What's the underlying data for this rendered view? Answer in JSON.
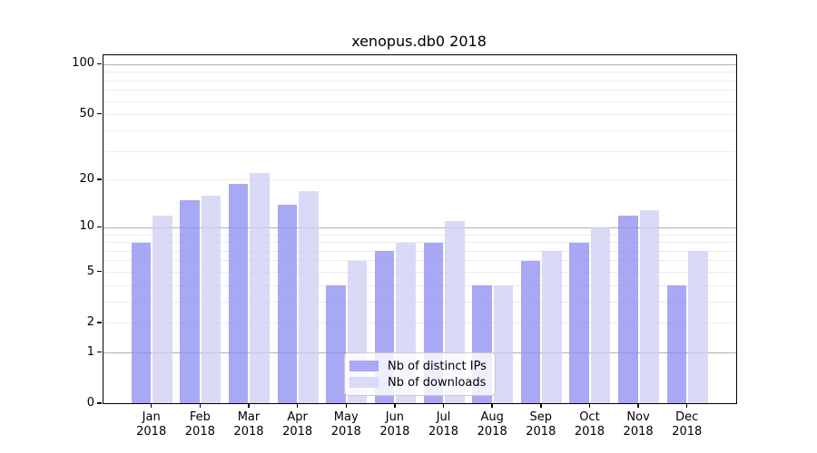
{
  "title": "xenopus.db0 2018",
  "chart_data": {
    "type": "bar",
    "title": "xenopus.db0 2018",
    "categories": [
      "Jan 2018",
      "Feb 2018",
      "Mar 2018",
      "Apr 2018",
      "May 2018",
      "Jun 2018",
      "Jul 2018",
      "Aug 2018",
      "Sep 2018",
      "Oct 2018",
      "Nov 2018",
      "Dec 2018"
    ],
    "series": [
      {
        "name": "Nb of distinct IPs",
        "color": "#a8a8f5",
        "values": [
          8,
          15,
          19,
          14,
          4,
          7,
          8,
          4,
          6,
          8,
          12,
          4
        ]
      },
      {
        "name": "Nb of downloads",
        "color": "#dadaf7",
        "values": [
          12,
          16,
          22,
          17,
          6,
          8,
          11,
          4,
          7,
          10,
          13,
          7
        ]
      }
    ],
    "yscale": "log1p",
    "ylim": [
      0,
      100
    ],
    "ytick_values": [
      0,
      1,
      2,
      5,
      10,
      20,
      50,
      100
    ],
    "ytick_labels": [
      "0",
      "1",
      "2",
      "5",
      "10",
      "20",
      "50",
      "100"
    ],
    "major_grid_values": [
      1,
      10,
      100
    ],
    "minor_grid_values": [
      2,
      3,
      4,
      5,
      6,
      7,
      8,
      9,
      20,
      30,
      40,
      50,
      60,
      70,
      80,
      90
    ],
    "grid": true,
    "legend_position": "inside-bottom-center",
    "xlabel": "",
    "ylabel": ""
  },
  "colors": {
    "background": "#ffffff",
    "major_gridline": "#b0b0b0",
    "minor_gridline": "#ebebeb",
    "axis": "#000000",
    "legend_border": "#cccccc",
    "legend_background": "#ffffff"
  }
}
